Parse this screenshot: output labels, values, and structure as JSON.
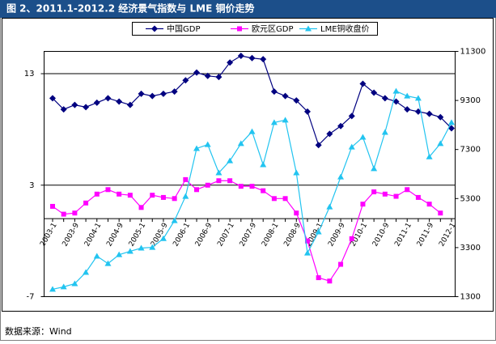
{
  "chart_data": {
    "type": "line",
    "title": "图 2、2011.1-2012.2 经济景气指数与 LME 铜价走势",
    "source": "数据来源：Wind",
    "categories": [
      "2003-1",
      null,
      "2003-9",
      null,
      "2004-1",
      null,
      "2004-9",
      null,
      "2005-1",
      null,
      "2005-9",
      null,
      "2006-1",
      null,
      "2006-9",
      null,
      "2007-1",
      null,
      "2007-9",
      null,
      "2008-1",
      null,
      "2008-9",
      null,
      "2009-1",
      null,
      "2009-9",
      null,
      "2010-1",
      null,
      "2010-9",
      null,
      "2011-1",
      null,
      "2011-9",
      null,
      "2012-1"
    ],
    "series": [
      {
        "name": "中国GDP",
        "color": "#000080",
        "marker": "diamond",
        "axis": "y",
        "values": [
          10.8,
          9.8,
          10.2,
          10.0,
          10.4,
          10.8,
          10.5,
          10.2,
          11.2,
          11.0,
          11.2,
          11.4,
          12.4,
          13.1,
          12.8,
          12.7,
          14.0,
          14.6,
          14.4,
          14.3,
          11.4,
          11.0,
          10.6,
          9.6,
          6.6,
          7.6,
          8.3,
          9.2,
          12.1,
          11.3,
          10.8,
          10.5,
          9.8,
          9.6,
          9.4,
          9.1,
          8.1
        ]
      },
      {
        "name": "欧元区GDP",
        "color": "#ff00ff",
        "marker": "square",
        "axis": "y",
        "values": [
          1.1,
          0.4,
          0.5,
          1.4,
          2.2,
          2.6,
          2.2,
          2.1,
          1.0,
          2.1,
          1.9,
          1.8,
          3.5,
          2.6,
          3.0,
          3.4,
          3.4,
          2.9,
          2.9,
          2.5,
          1.8,
          1.8,
          0.5,
          -2.0,
          -5.3,
          -5.6,
          -4.1,
          -1.8,
          1.3,
          2.4,
          2.2,
          2.0,
          2.6,
          1.9,
          1.3,
          0.5,
          null
        ]
      },
      {
        "name": "LME铜收盘价",
        "color": "#22c4f0",
        "marker": "triangle",
        "axis": "y2",
        "values": [
          1600,
          1700,
          1830,
          2290,
          2950,
          2650,
          3010,
          3150,
          3280,
          3310,
          3670,
          4400,
          5390,
          7340,
          7500,
          6350,
          6840,
          7540,
          8030,
          6680,
          8400,
          8500,
          6350,
          3080,
          3940,
          4960,
          6180,
          7400,
          7800,
          6520,
          8000,
          9680,
          9480,
          9390,
          7000,
          7540,
          8400
        ]
      }
    ],
    "ylim": [
      -7,
      15
    ],
    "yticks": [
      -7,
      3,
      13
    ],
    "y2lim": [
      1300,
      11300
    ],
    "y2ticks": [
      1300,
      3300,
      5300,
      7300,
      9300,
      11300
    ],
    "grid": true,
    "legend": "top"
  }
}
